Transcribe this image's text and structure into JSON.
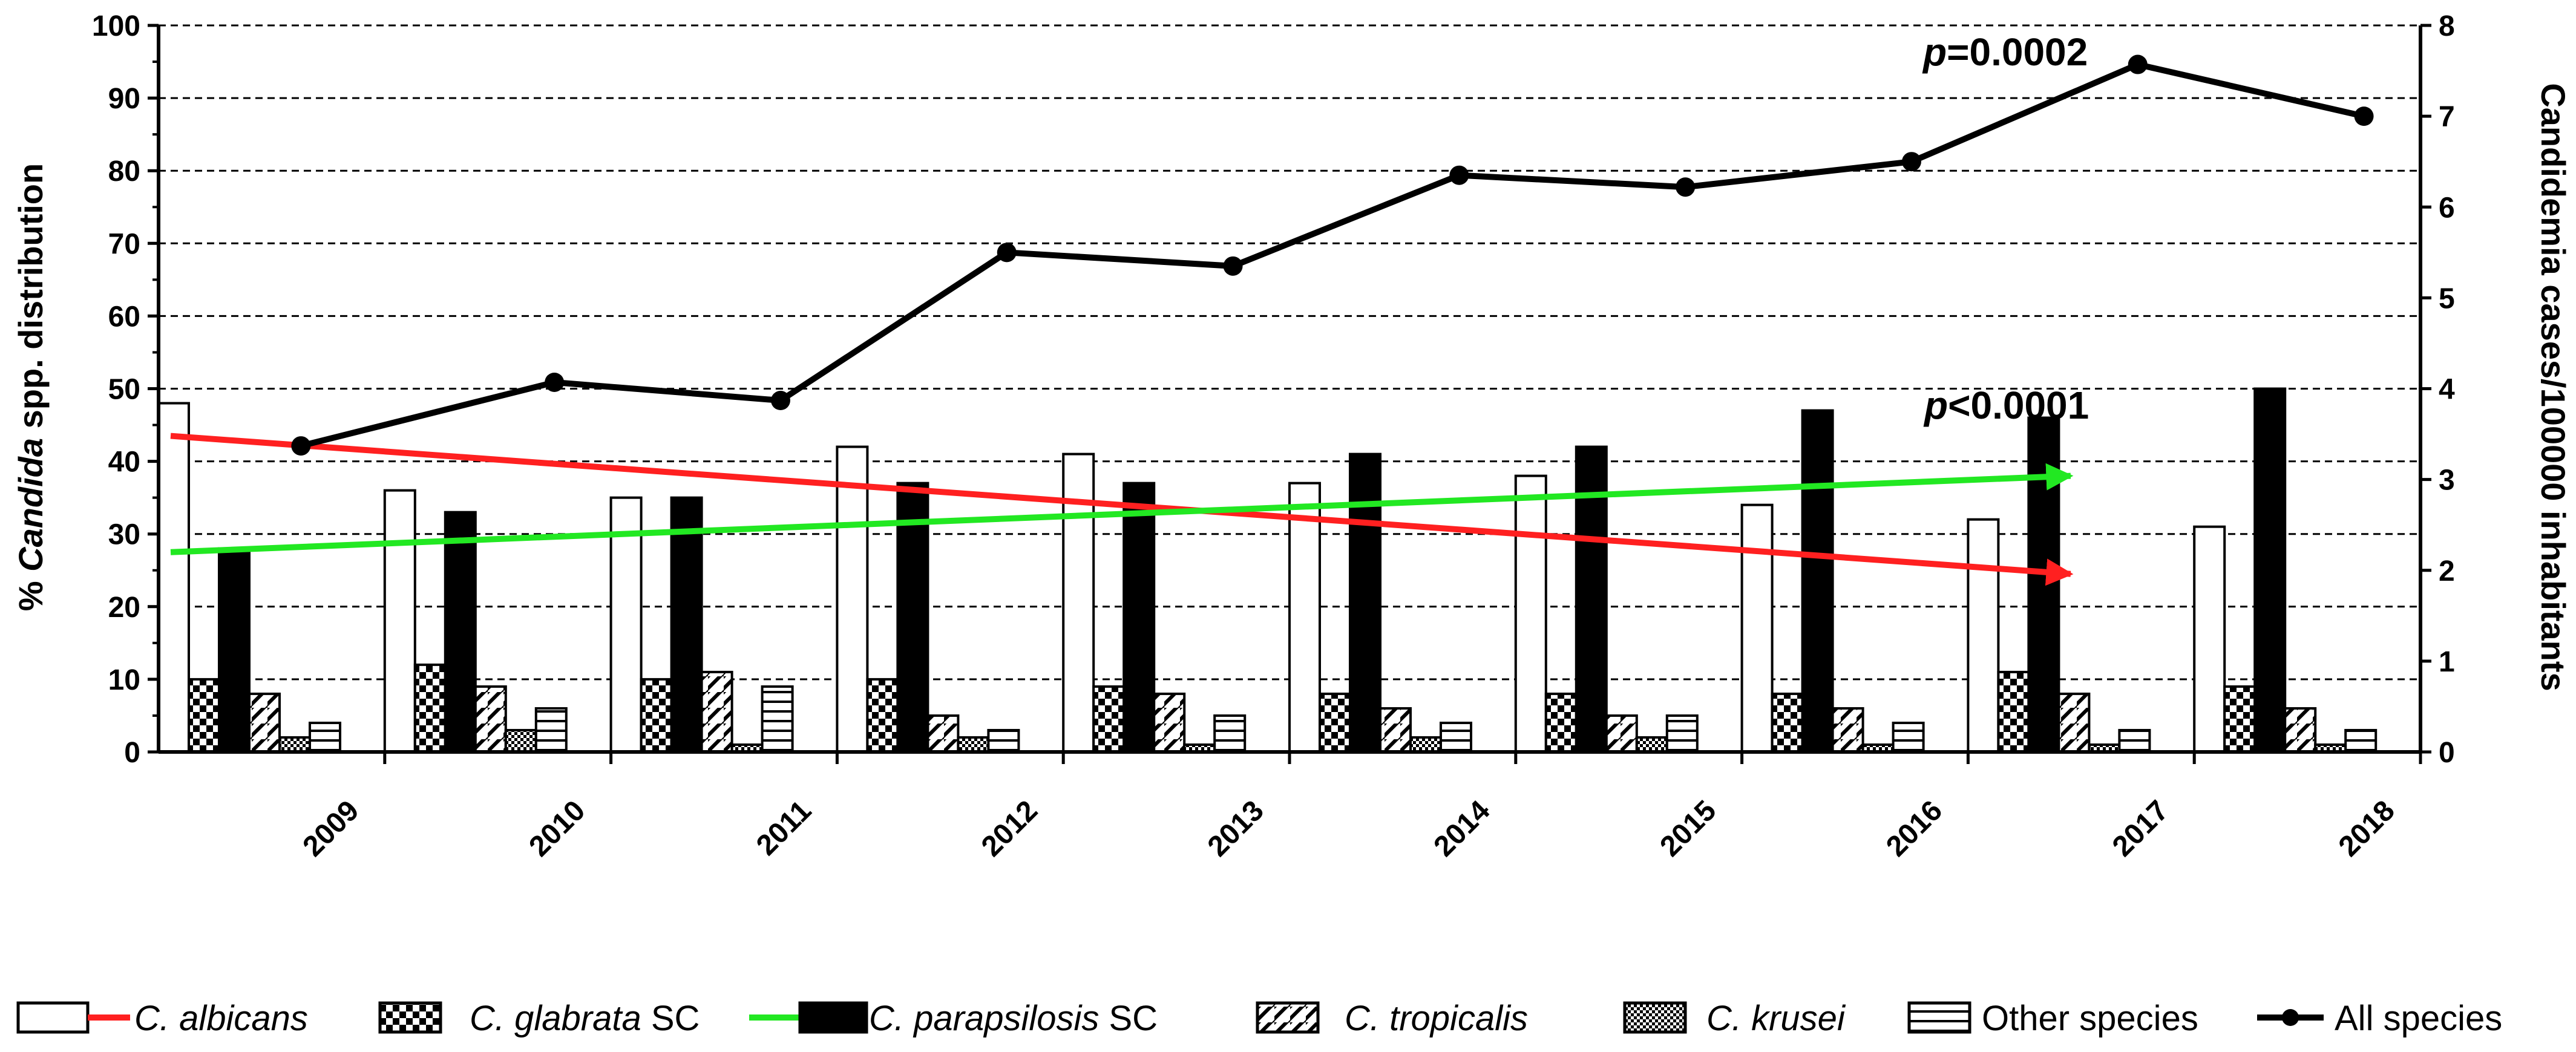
{
  "chart_data": {
    "type": "bar",
    "title": "",
    "categories": [
      "2009",
      "2010",
      "2011",
      "2012",
      "2013",
      "2014",
      "2015",
      "2016",
      "2017",
      "2018"
    ],
    "xlabel": "",
    "ylabel": {
      "prefix": "% ",
      "italic": "Candida",
      "suffix": " spp. distribution"
    },
    "ylim": [
      0,
      100
    ],
    "yticks": [
      "0",
      "10",
      "20",
      "30",
      "40",
      "50",
      "60",
      "70",
      "80",
      "90",
      "100"
    ],
    "y2label": "Candidemia cases/100000 inhabitants",
    "y2lim": [
      0,
      8
    ],
    "y2ticks": [
      "0",
      "1",
      "2",
      "3",
      "4",
      "5",
      "6",
      "7",
      "8"
    ],
    "grid": true,
    "series": [
      {
        "key": "albicans",
        "name_italic": "C. albicans",
        "name_suffix": "",
        "pattern": "white",
        "values": [
          48,
          36,
          35,
          42,
          41,
          37,
          38,
          34,
          32,
          31
        ]
      },
      {
        "key": "glabrata",
        "name_italic": "C. glabrata",
        "name_suffix": " SC",
        "pattern": "checker",
        "values": [
          10,
          12,
          10,
          10,
          9,
          8,
          8,
          8,
          11,
          9
        ]
      },
      {
        "key": "parapsilosis",
        "name_italic": "C. parapsilosis",
        "name_suffix": " SC",
        "pattern": "black",
        "values": [
          28,
          33,
          35,
          37,
          37,
          41,
          42,
          47,
          46,
          50
        ]
      },
      {
        "key": "tropicalis",
        "name_italic": "C. tropicalis",
        "name_suffix": "",
        "pattern": "diagonal",
        "values": [
          8,
          9,
          11,
          5,
          8,
          6,
          5,
          6,
          8,
          6
        ]
      },
      {
        "key": "krusei",
        "name_italic": "C. krusei",
        "name_suffix": "",
        "pattern": "finechecker",
        "values": [
          2,
          3,
          1,
          2,
          1,
          2,
          2,
          1,
          1,
          1
        ]
      },
      {
        "key": "other",
        "name_italic": "",
        "name_suffix": "Other species",
        "pattern": "horizontal",
        "values": [
          4,
          6,
          9,
          3,
          5,
          4,
          5,
          4,
          3,
          3
        ]
      }
    ],
    "line_series": {
      "name": "All species",
      "axis": "right",
      "values": [
        3.37,
        4.07,
        3.87,
        5.5,
        5.35,
        6.35,
        6.22,
        6.5,
        7.57,
        7.0
      ]
    },
    "trend_lines": [
      {
        "color": "#ff2020",
        "series": "albicans",
        "from": {
          "x": 0,
          "y": 43.5
        },
        "to": {
          "x": 8.4,
          "y": 24.5
        }
      },
      {
        "color": "#22e822",
        "series": "parapsilosis",
        "from": {
          "x": 0,
          "y": 27.5
        },
        "to": {
          "x": 8.4,
          "y": 38
        }
      }
    ],
    "annotations": [
      {
        "key": "all",
        "italic": "p",
        "text": "=0.0002"
      },
      {
        "key": "para",
        "italic": "p",
        "text": "<0.0001"
      }
    ],
    "legend_placement": "bottom"
  }
}
